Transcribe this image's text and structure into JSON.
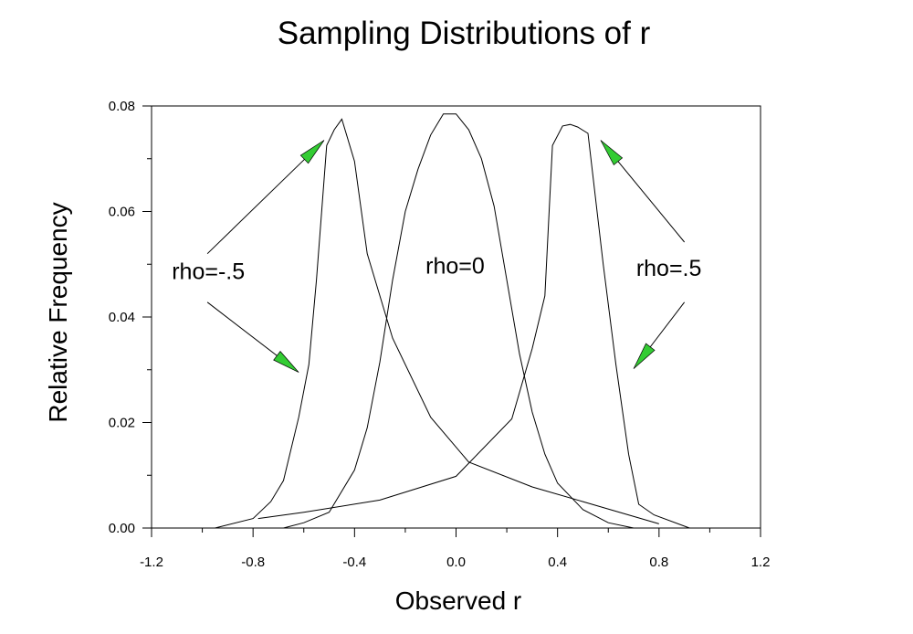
{
  "chart_data": {
    "type": "line",
    "title": "Sampling Distributions of r",
    "xlabel": "Observed r",
    "ylabel": "Relative Frequency",
    "xlim": [
      -1.2,
      1.2
    ],
    "ylim": [
      0,
      0.08
    ],
    "xticks": [
      -1.2,
      -0.8,
      -0.4,
      0.0,
      0.4,
      0.8,
      1.2
    ],
    "xtick_labels": [
      "-1.2",
      "-0.8",
      "-0.4",
      "0.0",
      "0.4",
      "0.8",
      "1.2"
    ],
    "yticks": [
      0,
      0.02,
      0.04,
      0.06,
      0.08
    ],
    "ytick_labels": [
      "0.00",
      "0.02",
      "0.04",
      "0.06",
      "0.08"
    ],
    "grid": false,
    "series": [
      {
        "x": [
          -0.95,
          -0.8,
          -0.73,
          -0.68,
          -0.62,
          -0.58,
          -0.55,
          -0.51,
          -0.48,
          -0.45,
          -0.4,
          -0.35,
          -0.25,
          -0.1,
          0.05,
          0.3,
          0.5,
          0.8
        ],
        "y": [
          0,
          0.0018,
          0.005,
          0.009,
          0.021,
          0.031,
          0.047,
          0.0725,
          0.0755,
          0.0775,
          0.0695,
          0.052,
          0.036,
          0.021,
          0.0125,
          0.0078,
          0.005,
          0.0008
        ]
      },
      {
        "x": [
          -0.68,
          -0.6,
          -0.5,
          -0.4,
          -0.35,
          -0.3,
          -0.25,
          -0.2,
          -0.15,
          -0.1,
          -0.05,
          0.0,
          0.05,
          0.1,
          0.15,
          0.2,
          0.25,
          0.3,
          0.35,
          0.4,
          0.5,
          0.6,
          0.7
        ],
        "y": [
          0,
          0.001,
          0.003,
          0.011,
          0.019,
          0.0315,
          0.047,
          0.06,
          0.068,
          0.0745,
          0.0785,
          0.0785,
          0.0755,
          0.07,
          0.061,
          0.047,
          0.033,
          0.022,
          0.014,
          0.0085,
          0.0035,
          0.001,
          0
        ]
      },
      {
        "x": [
          -0.78,
          -0.6,
          -0.3,
          0.0,
          0.22,
          0.22,
          0.3,
          0.35,
          0.38,
          0.42,
          0.45,
          0.48,
          0.52,
          0.58,
          0.63,
          0.68,
          0.72,
          0.78,
          0.92
        ],
        "y": [
          0.0018,
          0.003,
          0.0053,
          0.0098,
          0.0207,
          0.0207,
          0.034,
          0.044,
          0.0725,
          0.0762,
          0.0765,
          0.076,
          0.0748,
          0.05,
          0.031,
          0.014,
          0.0045,
          0.0025,
          0
        ]
      }
    ],
    "annotations": [
      {
        "text": "rho=-.5",
        "x": -1.12,
        "y": 0.0472
      },
      {
        "text": "rho=0",
        "x": -0.12,
        "y": 0.0482
      },
      {
        "text": "rho=.5",
        "x": 0.71,
        "y": 0.0478
      }
    ],
    "arrows": [
      {
        "from": [
          -0.98,
          0.052
        ],
        "to": [
          -0.52,
          0.0735
        ]
      },
      {
        "from": [
          -0.98,
          0.0428
        ],
        "to": [
          -0.62,
          0.0295
        ]
      },
      {
        "from": [
          0.9,
          0.0542
        ],
        "to": [
          0.57,
          0.0735
        ]
      },
      {
        "from": [
          0.9,
          0.0428
        ],
        "to": [
          0.7,
          0.0302
        ]
      }
    ],
    "colors": {
      "curve": "#000000",
      "arrow_head": "#33cc33",
      "background": "#ffffff"
    }
  }
}
